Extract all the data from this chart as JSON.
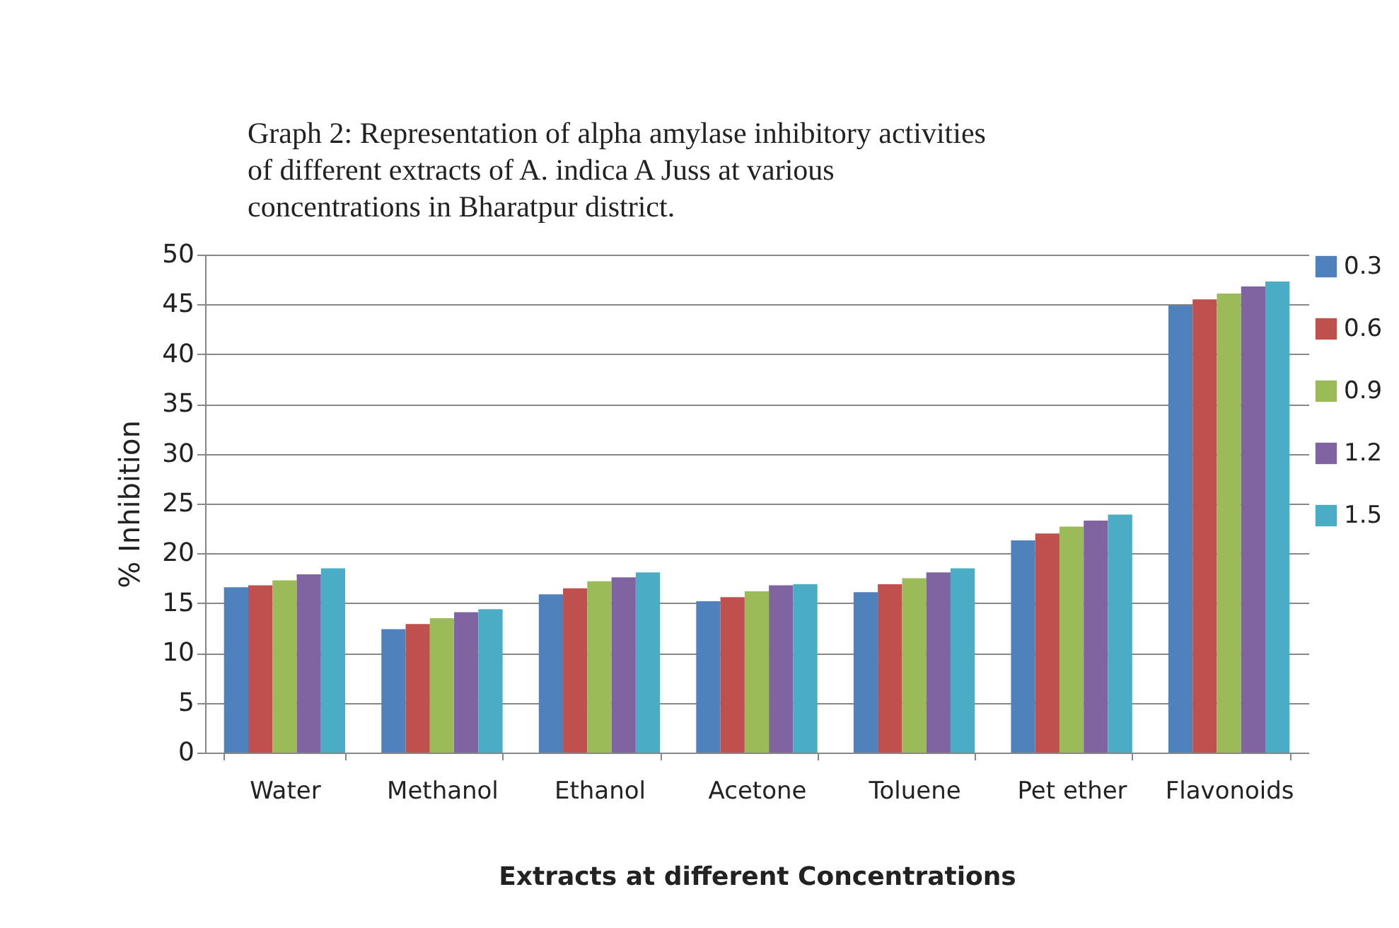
{
  "chart_data": {
    "type": "bar",
    "title": "Graph 2: Representation of alpha amylase inhibitory activities\nof different extracts of A. indica A Juss at various\nconcentrations in Bharatpur district.",
    "xlabel": "Extracts at different Concentrations",
    "ylabel": "% Inhibition",
    "categories": [
      "Water",
      "Methanol",
      "Ethanol",
      "Acetone",
      "Toluene",
      "Pet ether",
      "Flavonoids"
    ],
    "series": [
      {
        "name": "0.3",
        "color": "#4f81bd",
        "values": [
          16.6,
          12.4,
          15.9,
          15.2,
          16.1,
          21.3,
          44.9
        ]
      },
      {
        "name": "0.6",
        "color": "#c0504d",
        "values": [
          16.8,
          12.9,
          16.5,
          15.6,
          16.9,
          22.0,
          45.5
        ]
      },
      {
        "name": "0.9",
        "color": "#9bbb59",
        "values": [
          17.3,
          13.5,
          17.2,
          16.2,
          17.5,
          22.7,
          46.1
        ]
      },
      {
        "name": "1.2",
        "color": "#8064a2",
        "values": [
          17.9,
          14.1,
          17.6,
          16.8,
          18.1,
          23.3,
          46.8
        ]
      },
      {
        "name": "1.5",
        "color": "#4bacc6",
        "values": [
          18.5,
          14.4,
          18.1,
          16.9,
          18.5,
          23.9,
          47.3
        ]
      }
    ],
    "ylim": [
      0,
      50
    ],
    "yticks": [
      0,
      5,
      10,
      15,
      20,
      25,
      30,
      35,
      40,
      45,
      50
    ],
    "grid": "y",
    "legend": "right"
  }
}
